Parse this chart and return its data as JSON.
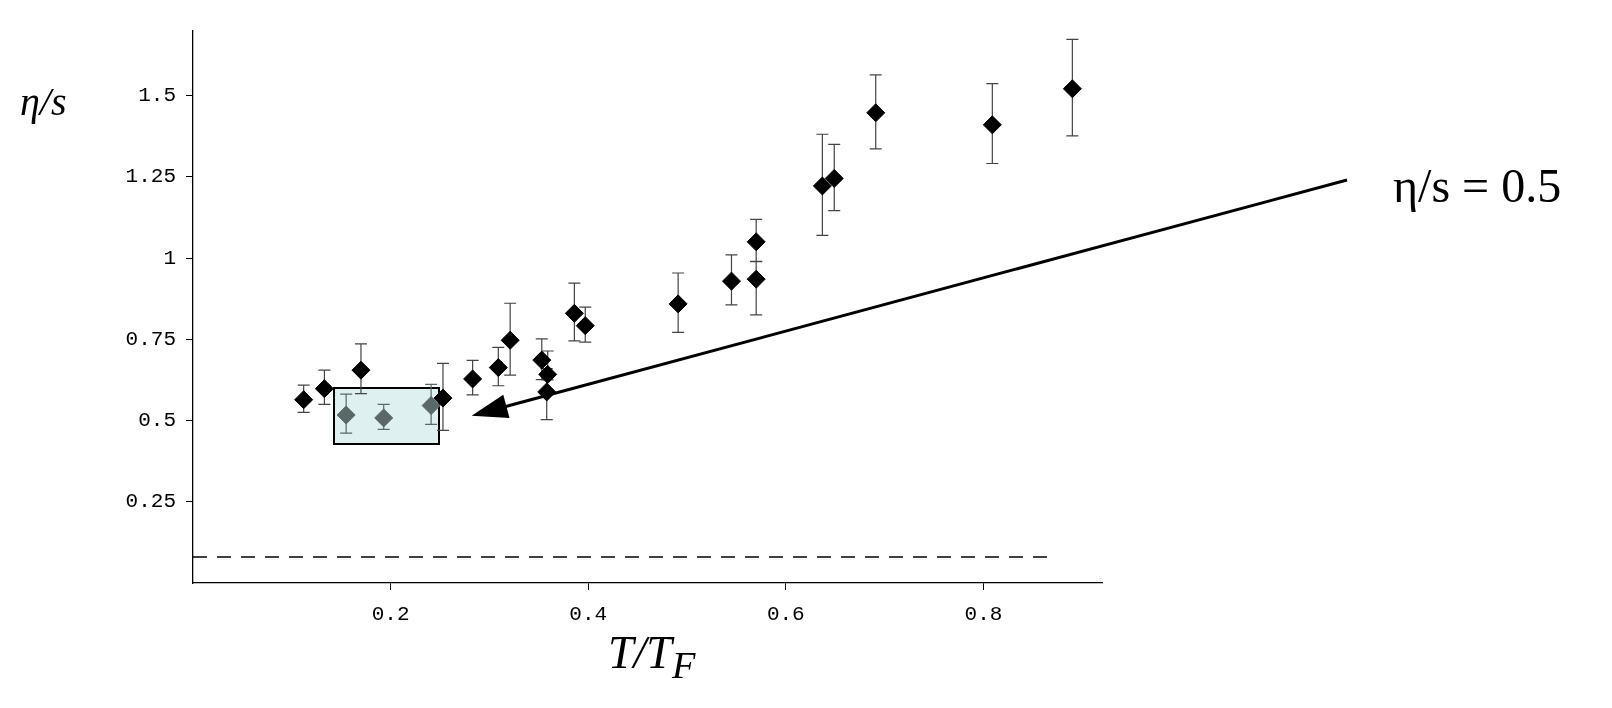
{
  "chart_data": {
    "type": "scatter",
    "xlabel": "T/T$_{F}$",
    "ylabel": "η/s",
    "xlim": [
      0,
      0.92
    ],
    "ylim": [
      0,
      1.7
    ],
    "xticks": [
      0.2,
      0.4,
      0.6,
      0.8
    ],
    "yticks": [
      0.25,
      0.5,
      0.75,
      1,
      1.25,
      1.5
    ],
    "grid": false,
    "legend": false,
    "marker": "diamond",
    "annotations": [
      "η/s = 0.5"
    ],
    "ref_lines": [
      {
        "axis": "y",
        "value": 0.08,
        "line_style": "dashed",
        "color": "#000000"
      }
    ],
    "series": [
      {
        "color": "#000000",
        "x": [
          0.112,
          0.133,
          0.17,
          0.253,
          0.283,
          0.309,
          0.321,
          0.353,
          0.359,
          0.358,
          0.386,
          0.397,
          0.491,
          0.545,
          0.57,
          0.57,
          0.637,
          0.649,
          0.691,
          0.809,
          0.89
        ],
        "values": [
          0.564,
          0.598,
          0.655,
          0.569,
          0.628,
          0.663,
          0.747,
          0.686,
          0.642,
          0.588,
          0.83,
          0.792,
          0.859,
          0.929,
          1.05,
          0.935,
          1.222,
          1.245,
          1.447,
          1.41,
          1.521
        ],
        "errors": [
          [
            0.525,
            0.609
          ],
          [
            0.55,
            0.655
          ],
          [
            0.583,
            0.736
          ],
          [
            0.47,
            0.676
          ],
          [
            0.579,
            0.685
          ],
          [
            0.607,
            0.725
          ],
          [
            0.64,
            0.861
          ],
          [
            0.626,
            0.751
          ],
          [
            0.625,
            0.714
          ],
          [
            0.503,
            0.66
          ],
          [
            0.745,
            0.923
          ],
          [
            0.741,
            0.849
          ],
          [
            0.771,
            0.954
          ],
          [
            0.856,
            1.01
          ],
          [
            0.99,
            1.119
          ],
          [
            0.825,
            0.989
          ],
          [
            1.07,
            1.381
          ],
          [
            1.146,
            1.35
          ],
          [
            1.336,
            1.564
          ],
          [
            1.291,
            1.537
          ],
          [
            1.376,
            1.673
          ]
        ]
      },
      {
        "color": "#5a6868",
        "x": [
          0.155,
          0.193,
          0.241
        ],
        "values": [
          0.517,
          0.508,
          0.546
        ],
        "errors": [
          [
            0.461,
            0.581
          ],
          [
            0.473,
            0.55
          ],
          [
            0.488,
            0.611
          ]
        ]
      }
    ]
  }
}
